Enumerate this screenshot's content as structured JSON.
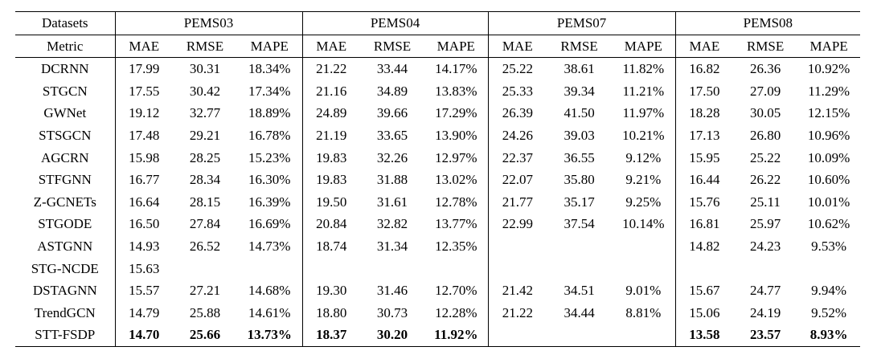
{
  "table": {
    "corner_label": "Datasets",
    "metric_label": "Metric",
    "datasets": [
      "PEMS03",
      "PEMS04",
      "PEMS07",
      "PEMS08"
    ],
    "metrics": [
      "MAE",
      "RMSE",
      "MAPE"
    ],
    "rows": [
      {
        "model": "DCRNN",
        "bold": false,
        "values": [
          "17.99",
          "30.31",
          "18.34%",
          "21.22",
          "33.44",
          "14.17%",
          "25.22",
          "38.61",
          "11.82%",
          "16.82",
          "26.36",
          "10.92%"
        ]
      },
      {
        "model": "STGCN",
        "bold": false,
        "values": [
          "17.55",
          "30.42",
          "17.34%",
          "21.16",
          "34.89",
          "13.83%",
          "25.33",
          "39.34",
          "11.21%",
          "17.50",
          "27.09",
          "11.29%"
        ]
      },
      {
        "model": "GWNet",
        "bold": false,
        "values": [
          "19.12",
          "32.77",
          "18.89%",
          "24.89",
          "39.66",
          "17.29%",
          "26.39",
          "41.50",
          "11.97%",
          "18.28",
          "30.05",
          "12.15%"
        ]
      },
      {
        "model": "STSGCN",
        "bold": false,
        "values": [
          "17.48",
          "29.21",
          "16.78%",
          "21.19",
          "33.65",
          "13.90%",
          "24.26",
          "39.03",
          "10.21%",
          "17.13",
          "26.80",
          "10.96%"
        ]
      },
      {
        "model": "AGCRN",
        "bold": false,
        "values": [
          "15.98",
          "28.25",
          "15.23%",
          "19.83",
          "32.26",
          "12.97%",
          "22.37",
          "36.55",
          "9.12%",
          "15.95",
          "25.22",
          "10.09%"
        ]
      },
      {
        "model": "STFGNN",
        "bold": false,
        "values": [
          "16.77",
          "28.34",
          "16.30%",
          "19.83",
          "31.88",
          "13.02%",
          "22.07",
          "35.80",
          "9.21%",
          "16.44",
          "26.22",
          "10.60%"
        ]
      },
      {
        "model": "Z-GCNETs",
        "bold": false,
        "values": [
          "16.64",
          "28.15",
          "16.39%",
          "19.50",
          "31.61",
          "12.78%",
          "21.77",
          "35.17",
          "9.25%",
          "15.76",
          "25.11",
          "10.01%"
        ]
      },
      {
        "model": "STGODE",
        "bold": false,
        "values": [
          "16.50",
          "27.84",
          "16.69%",
          "20.84",
          "32.82",
          "13.77%",
          "22.99",
          "37.54",
          "10.14%",
          "16.81",
          "25.97",
          "10.62%"
        ]
      },
      {
        "model": "ASTGNN",
        "bold": false,
        "values": [
          "14.93",
          "26.52",
          "14.73%",
          "18.74",
          "31.34",
          "12.35%",
          "",
          "",
          "",
          "14.82",
          "24.23",
          "9.53%"
        ]
      },
      {
        "model": "STG-NCDE",
        "bold": false,
        "values": [
          "15.63",
          "",
          "",
          "",
          "",
          "",
          "",
          "",
          "",
          "",
          "",
          ""
        ]
      },
      {
        "model": "DSTAGNN",
        "bold": false,
        "values": [
          "15.57",
          "27.21",
          "14.68%",
          "19.30",
          "31.46",
          "12.70%",
          "21.42",
          "34.51",
          "9.01%",
          "15.67",
          "24.77",
          "9.94%"
        ]
      },
      {
        "model": "TrendGCN",
        "bold": false,
        "values": [
          "14.79",
          "25.88",
          "14.61%",
          "18.80",
          "30.73",
          "12.28%",
          "21.22",
          "34.44",
          "8.81%",
          "15.06",
          "24.19",
          "9.52%"
        ]
      },
      {
        "model": "STT-FSDP",
        "bold": true,
        "values": [
          "14.70",
          "25.66",
          "13.73%",
          "18.37",
          "30.20",
          "11.92%",
          "",
          "",
          "",
          "13.58",
          "23.57",
          "8.93%"
        ]
      }
    ]
  }
}
